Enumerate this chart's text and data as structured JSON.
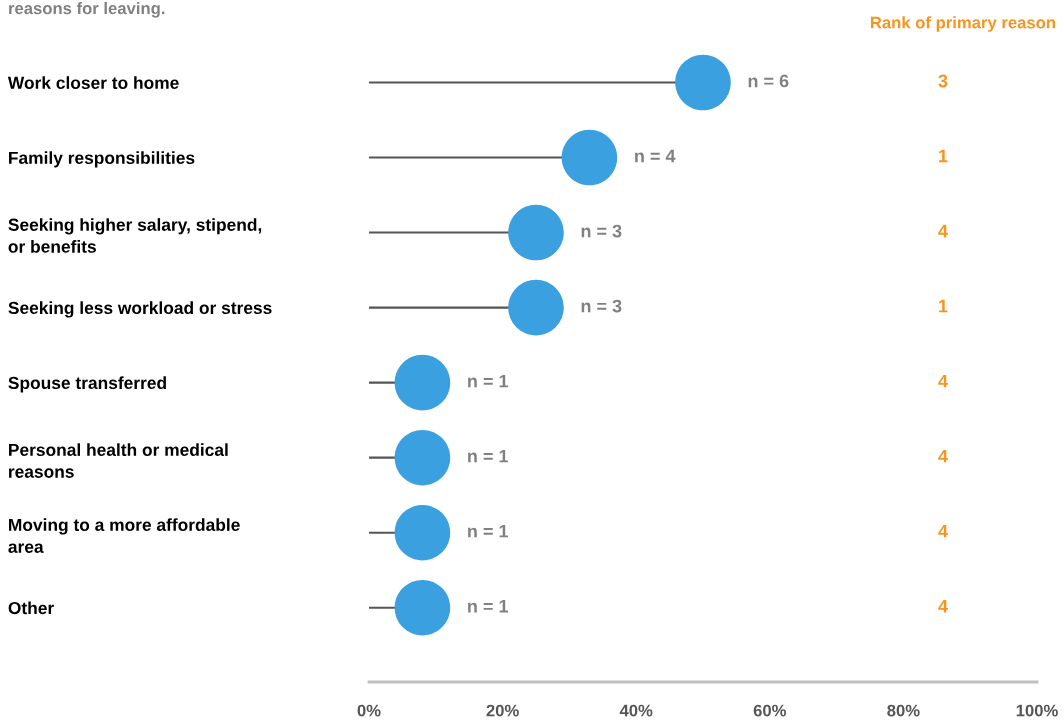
{
  "chart_data": {
    "type": "lollipop",
    "title": "reasons for leaving.",
    "orientation": "horizontal",
    "categories": [
      "Work closer to home",
      "Family responsibilities",
      "Seeking higher salary, stipend,\nor benefits",
      "Seeking less workload or stress",
      "Spouse transferred",
      "Personal health or medical\nreasons",
      "Moving to a more affordable\narea",
      "Other"
    ],
    "values": [
      50,
      33,
      25,
      25,
      8,
      8,
      8,
      8
    ],
    "color": "#3aa0e0",
    "xlim": [
      0,
      100
    ],
    "xticks": [
      {
        "value": 0,
        "label": "0%"
      },
      {
        "value": 20,
        "label": "20%"
      },
      {
        "value": 40,
        "label": "40%"
      },
      {
        "value": 60,
        "label": "60%"
      },
      {
        "value": 80,
        "label": "80%"
      },
      {
        "value": 100,
        "label": "100%"
      }
    ],
    "grid": false,
    "marker": "circle",
    "annotations": [
      "Rank of primary reason",
      {
        "text": "n = 6",
        "x": 50,
        "y": "Work closer to home"
      },
      {
        "text": "n = 4",
        "x": 33,
        "y": "Family responsibilities"
      },
      {
        "text": "n = 3",
        "x": 25,
        "y": "Seeking higher salary, stipend,\nor benefits"
      },
      {
        "text": "n = 3",
        "x": 25,
        "y": "Seeking less workload or stress"
      },
      {
        "text": "n = 1",
        "x": 8,
        "y": "Spouse transferred"
      },
      {
        "text": "n = 1",
        "x": 8,
        "y": "Personal health or medical\nreasons"
      },
      {
        "text": "n = 1",
        "x": 8,
        "y": "Moving to a more affordable\narea"
      },
      {
        "text": "n = 1",
        "x": 8,
        "y": "Other"
      },
      "3",
      "1",
      "4",
      "1",
      "4",
      "4",
      "4",
      "4"
    ]
  }
}
